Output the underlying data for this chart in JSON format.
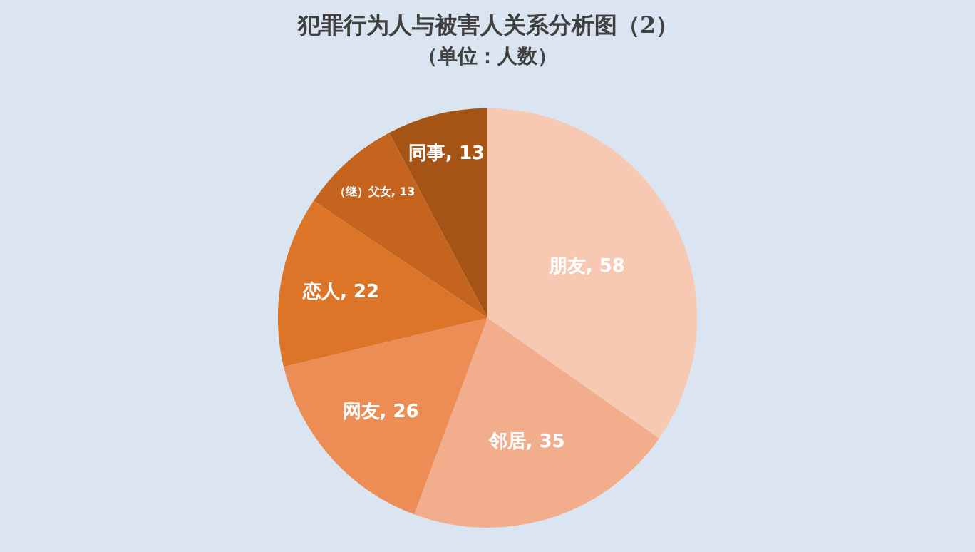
{
  "chart_data": {
    "type": "pie",
    "title": "犯罪行为人与被害人关系分析图（2）",
    "subtitle": "（单位：人数）",
    "categories": [
      "朋友",
      "邻居",
      "网友",
      "恋人",
      "（继）父女",
      "同事"
    ],
    "values": [
      58,
      35,
      26,
      22,
      13,
      13
    ],
    "colors": [
      "#f7c9b2",
      "#f2ae8c",
      "#ec8d55",
      "#dd7529",
      "#c4641f",
      "#a65416"
    ],
    "value_labels": [
      ", 58",
      ", 35",
      ", 26",
      ", 22",
      ", 13",
      ", 13"
    ],
    "legend": false
  }
}
